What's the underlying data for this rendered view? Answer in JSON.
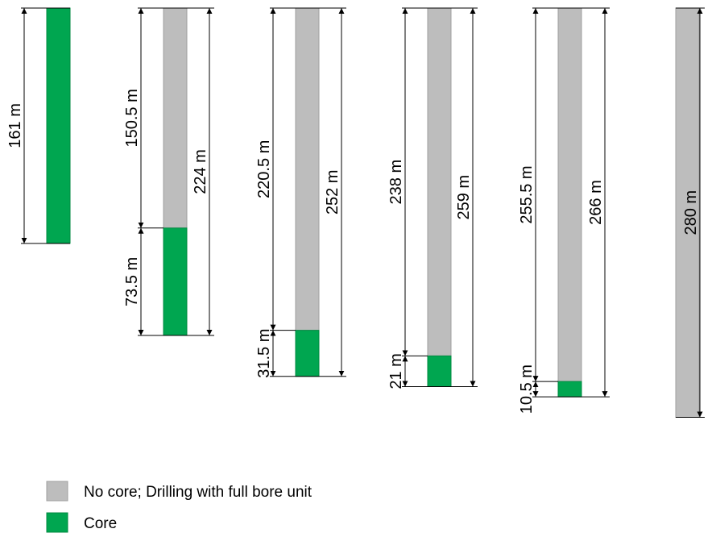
{
  "colors": {
    "no_core": "#bdbdbd",
    "no_core_stroke": "#a0a0a0",
    "core": "#00a650",
    "core_stroke": "#008a40",
    "line": "#000000"
  },
  "boreholes": [
    {
      "total": 161,
      "no_core": 0,
      "core": 161,
      "total_label": "",
      "no_core_label": "",
      "core_label": "161 m"
    },
    {
      "total": 224,
      "no_core": 150.5,
      "core": 73.5,
      "total_label": "224 m",
      "no_core_label": "150.5 m",
      "core_label": "73.5 m"
    },
    {
      "total": 252,
      "no_core": 220.5,
      "core": 31.5,
      "total_label": "252 m",
      "no_core_label": "220.5 m",
      "core_label": "31.5 m"
    },
    {
      "total": 259,
      "no_core": 238,
      "core": 21,
      "total_label": "259 m",
      "no_core_label": "238 m",
      "core_label": "21 m"
    },
    {
      "total": 266,
      "no_core": 255.5,
      "core": 10.5,
      "total_label": "266 m",
      "no_core_label": "255.5 m",
      "core_label": "10.5 m"
    },
    {
      "total": 280,
      "no_core": 280,
      "core": 0,
      "total_label": "280 m",
      "no_core_label": "",
      "core_label": ""
    }
  ],
  "legend": [
    {
      "key": "no_core",
      "label": "No core; Drilling with full bore unit"
    },
    {
      "key": "core",
      "label": "Core"
    }
  ]
}
